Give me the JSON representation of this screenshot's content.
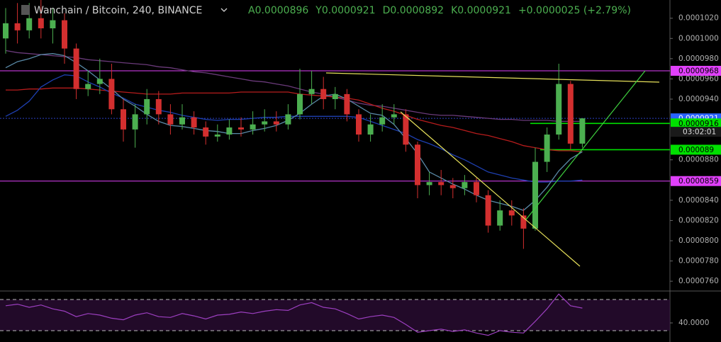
{
  "chart_data": {
    "type": "candlestick",
    "title": "Wanchain / Bitcoin, 240, BINANCE",
    "header_values": [
      "A0.0000896",
      "Y0.0000921",
      "D0.0000892",
      "K0.0000921",
      "+0.0000025 (+2.79%)"
    ],
    "up_color": "#4caf50",
    "down_color": "#d32f2f",
    "ylim": [
      7.51e-05,
      0.0001038
    ],
    "yticks": [
      {
        "value": 0.000102,
        "label": "0.0001020"
      },
      {
        "value": 0.0001,
        "label": "0.0001000"
      },
      {
        "value": 9.8e-05,
        "label": "0.0000980"
      },
      {
        "value": 9.6e-05,
        "label": "0.0000960"
      },
      {
        "value": 9.4e-05,
        "label": "0.0000940"
      },
      {
        "value": 8.8e-05,
        "label": "0.0000880"
      },
      {
        "value": 8.4e-05,
        "label": "0.0000840"
      },
      {
        "value": 8.2e-05,
        "label": "0.0000820"
      },
      {
        "value": 8e-05,
        "label": "0.0000800"
      },
      {
        "value": 7.8e-05,
        "label": "0.0000780"
      },
      {
        "value": 7.6e-05,
        "label": "0.0000760"
      }
    ],
    "open": [
      0.0001,
      0.0001015,
      0.0001008,
      0.000102,
      0.000101,
      0.0001018,
      9.9e-05,
      9.5e-05,
      9.55e-05,
      9.6e-05,
      9.3e-05,
      9.1e-05,
      9.25e-05,
      9.4e-05,
      9.25e-05,
      9.15e-05,
      9.22e-05,
      9.12e-05,
      9.03e-05,
      9.05e-05,
      9.12e-05,
      9.1e-05,
      9.15e-05,
      9.18e-05,
      9.15e-05,
      9.25e-05,
      9.45e-05,
      9.5e-05,
      9.4e-05,
      9.45e-05,
      9.25e-05,
      9.05e-05,
      9.15e-05,
      9.22e-05,
      9.25e-05,
      8.95e-05,
      8.55e-05,
      8.58e-05,
      8.55e-05,
      8.52e-05,
      8.58e-05,
      8.45e-05,
      8.15e-05,
      8.3e-05,
      8.25e-05,
      8.12e-05,
      8.78e-05,
      9.05e-05,
      9.55e-05,
      8.96e-05
    ],
    "high": [
      0.000103,
      0.0001035,
      0.0001035,
      0.0001038,
      0.000103,
      0.0001025,
      9.95e-05,
      9.68e-05,
      9.8e-05,
      9.75e-05,
      9.4e-05,
      9.35e-05,
      9.5e-05,
      9.48e-05,
      9.35e-05,
      9.35e-05,
      9.28e-05,
      9.18e-05,
      9.15e-05,
      9.2e-05,
      9.22e-05,
      9.28e-05,
      9.3e-05,
      9.28e-05,
      9.35e-05,
      9.7e-05,
      9.68e-05,
      9.62e-05,
      9.52e-05,
      9.5e-05,
      9.3e-05,
      9.25e-05,
      9.35e-05,
      9.35e-05,
      9.3e-05,
      8.98e-05,
      8.68e-05,
      8.7e-05,
      8.62e-05,
      8.65e-05,
      8.62e-05,
      8.5e-05,
      8.4e-05,
      8.4e-05,
      8.32e-05,
      8.92e-05,
      9.12e-05,
      9.75e-05,
      9.58e-05,
      9.21e-05
    ],
    "low": [
      9.85e-05,
      9.95e-05,
      0.0001,
      0.0001,
      9.95e-05,
      9.75e-05,
      9.4e-05,
      9.43e-05,
      9.45e-05,
      9.25e-05,
      8.98e-05,
      8.92e-05,
      9.15e-05,
      9.15e-05,
      9.05e-05,
      9.1e-05,
      9.05e-05,
      8.95e-05,
      8.98e-05,
      9e-05,
      9.03e-05,
      9.05e-05,
      9.08e-05,
      9.08e-05,
      9.1e-05,
      9.2e-05,
      9.35e-05,
      9.3e-05,
      9.3e-05,
      9.18e-05,
      8.98e-05,
      8.98e-05,
      9.08e-05,
      9.15e-05,
      8.88e-05,
      8.42e-05,
      8.45e-05,
      8.45e-05,
      8.42e-05,
      8.45e-05,
      8.38e-05,
      8.08e-05,
      8.1e-05,
      8.15e-05,
      7.92e-05,
      8.1e-05,
      8.68e-05,
      9e-05,
      8.9e-05,
      8.92e-05
    ],
    "close": [
      0.0001015,
      0.0001008,
      0.000102,
      0.000101,
      0.0001018,
      9.9e-05,
      9.5e-05,
      9.55e-05,
      9.6e-05,
      9.3e-05,
      9.1e-05,
      9.25e-05,
      9.4e-05,
      9.25e-05,
      9.15e-05,
      9.22e-05,
      9.12e-05,
      9.03e-05,
      9.05e-05,
      9.12e-05,
      9.1e-05,
      9.15e-05,
      9.18e-05,
      9.15e-05,
      9.25e-05,
      9.45e-05,
      9.5e-05,
      9.4e-05,
      9.45e-05,
      9.25e-05,
      9.05e-05,
      9.15e-05,
      9.22e-05,
      9.25e-05,
      8.95e-05,
      8.55e-05,
      8.58e-05,
      8.55e-05,
      8.52e-05,
      8.58e-05,
      8.45e-05,
      8.15e-05,
      8.3e-05,
      8.25e-05,
      8.12e-05,
      8.78e-05,
      9.05e-05,
      9.55e-05,
      8.96e-05,
      9.21e-05
    ],
    "moving_averages": [
      {
        "color": "#6a3a7a",
        "values": [
          9.88e-05,
          9.86e-05,
          9.85e-05,
          9.84e-05,
          9.83e-05,
          9.82e-05,
          9.81e-05,
          9.79e-05,
          9.78e-05,
          9.77e-05,
          9.76e-05,
          9.75e-05,
          9.74e-05,
          9.72e-05,
          9.71e-05,
          9.69e-05,
          9.67e-05,
          9.66e-05,
          9.64e-05,
          9.62e-05,
          9.6e-05,
          9.58e-05,
          9.57e-05,
          9.55e-05,
          9.53e-05,
          9.5e-05,
          9.47e-05,
          9.45e-05,
          9.42e-05,
          9.39e-05,
          9.36e-05,
          9.34e-05,
          9.33e-05,
          9.31e-05,
          9.29e-05,
          9.27e-05,
          9.25e-05,
          9.24e-05,
          9.24e-05,
          9.23e-05,
          9.22e-05,
          9.21e-05,
          9.2e-05,
          9.2e-05,
          9.19e-05,
          9.19e-05,
          9.19e-05,
          9.18e-05,
          9.18e-05,
          9.18e-05
        ]
      },
      {
        "color": "#b71c1c",
        "values": [
          9.49e-05,
          9.49e-05,
          9.5e-05,
          9.5e-05,
          9.51e-05,
          9.51e-05,
          9.51e-05,
          9.5e-05,
          9.49e-05,
          9.48e-05,
          9.47e-05,
          9.46e-05,
          9.45e-05,
          9.45e-05,
          9.45e-05,
          9.46e-05,
          9.46e-05,
          9.46e-05,
          9.46e-05,
          9.46e-05,
          9.47e-05,
          9.47e-05,
          9.47e-05,
          9.47e-05,
          9.47e-05,
          9.45e-05,
          9.44e-05,
          9.43e-05,
          9.42e-05,
          9.41e-05,
          9.39e-05,
          9.35e-05,
          9.31e-05,
          9.28e-05,
          9.24e-05,
          9.2e-05,
          9.17e-05,
          9.14e-05,
          9.12e-05,
          9.09e-05,
          9.06e-05,
          9.04e-05,
          9.01e-05,
          8.98e-05,
          8.94e-05,
          8.92e-05,
          8.9e-05,
          8.89e-05,
          8.89e-05,
          8.88e-05
        ]
      },
      {
        "color": "#1e3fb0",
        "values": [
          9.23e-05,
          9.29e-05,
          9.38e-05,
          9.52e-05,
          9.59e-05,
          9.64e-05,
          9.63e-05,
          9.57e-05,
          9.52e-05,
          9.46e-05,
          9.41e-05,
          9.35e-05,
          9.32e-05,
          9.29e-05,
          9.27e-05,
          9.24e-05,
          9.22e-05,
          9.2e-05,
          9.19e-05,
          9.2e-05,
          9.2e-05,
          9.21e-05,
          9.22e-05,
          9.22e-05,
          9.23e-05,
          9.23e-05,
          9.23e-05,
          9.23e-05,
          9.23e-05,
          9.23e-05,
          9.22e-05,
          9.18e-05,
          9.14e-05,
          9.1e-05,
          9.06e-05,
          9e-05,
          8.96e-05,
          8.91e-05,
          8.85e-05,
          8.8e-05,
          8.74e-05,
          8.68e-05,
          8.65e-05,
          8.62e-05,
          8.6e-05,
          8.58e-05,
          8.58e-05,
          8.59e-05,
          8.59e-05,
          8.6e-05
        ]
      },
      {
        "color": "#5a8aa8",
        "values": [
          9.71e-05,
          9.77e-05,
          9.8e-05,
          9.84e-05,
          9.85e-05,
          9.83e-05,
          9.76e-05,
          9.68e-05,
          9.59e-05,
          9.5e-05,
          9.4e-05,
          9.33e-05,
          9.25e-05,
          9.18e-05,
          9.14e-05,
          9.13e-05,
          9.11e-05,
          9.09e-05,
          9.08e-05,
          9.06e-05,
          9.06e-05,
          9.09e-05,
          9.11e-05,
          9.14e-05,
          9.19e-05,
          9.26e-05,
          9.35e-05,
          9.43e-05,
          9.45e-05,
          9.4e-05,
          9.33e-05,
          9.26e-05,
          9.24e-05,
          9.15e-05,
          9.01e-05,
          8.86e-05,
          8.68e-05,
          8.62e-05,
          8.56e-05,
          8.51e-05,
          8.45e-05,
          8.4e-05,
          8.37e-05,
          8.34e-05,
          8.3e-05,
          8.4e-05,
          8.53e-05,
          8.69e-05,
          8.81e-05,
          8.88e-05
        ]
      }
    ],
    "price_tags": [
      {
        "value": 9.68e-05,
        "color": "#e040fb",
        "text_color": "#000000"
      },
      {
        "value": 9.21e-05,
        "color": "#2962ff",
        "text_color": "#ffffff"
      },
      {
        "value": 9.16e-05,
        "color": "#00e000",
        "text_color": "#000000"
      },
      {
        "value": 8.9e-05,
        "color": "#00e000",
        "text_color": "#000000"
      },
      {
        "value": 8.59e-05,
        "color": "#e040fb",
        "text_color": "#000000"
      }
    ],
    "countdown": "03:02:01",
    "rsi": {
      "color": "#9c3fc0",
      "ylim": [
        15.5,
        80
      ],
      "bands": [
        30,
        70
      ],
      "yticks": [
        {
          "value": 40,
          "label": "40.0000"
        }
      ],
      "values": [
        62,
        64,
        60,
        63,
        58,
        55,
        48,
        52,
        50,
        46,
        44,
        50,
        53,
        48,
        47,
        52,
        49,
        45,
        50,
        51,
        54,
        52,
        55,
        57,
        56,
        63,
        66,
        60,
        58,
        52,
        45,
        48,
        50,
        47,
        38,
        28,
        30,
        32,
        29,
        31,
        27,
        24,
        30,
        28,
        27,
        42,
        58,
        77,
        62,
        59
      ]
    }
  }
}
